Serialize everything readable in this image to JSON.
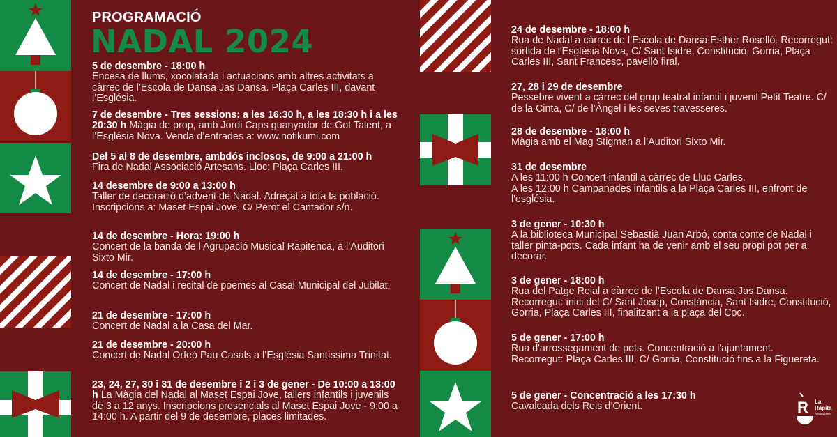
{
  "header": {
    "kicker": "PROGRAMACIÓ",
    "title": "NADAL 2024"
  },
  "colors": {
    "background": "#6b1619",
    "green": "#138a45",
    "red": "#8e1b14",
    "white": "#ffffff"
  },
  "left_events": [
    {
      "title": "5 de desembre - 18:00 h",
      "body": "Encesa de llums, xocolatada i actuacions amb altres activitats a càrrec de l’Escola de Dansa Jas Dansa. Plaça Carles III, davant l’Església."
    },
    {
      "title": "7 de desembre - Tres sessions: a les 16:30 h, a les 18:30 h i a les 20:30 h",
      "body": "Màgia de prop, amb Jordi Caps guanyador de Got Talent, a l’Església Nova. Venda d’entrades a: www.notikumi.com"
    },
    {
      "title": "Del 5 al 8 de desembre, ambdós inclosos, de 9:00 a 21:00 h",
      "body": "Fira de Nadal Associació Artesans. Lloc: Plaça Carles III."
    },
    {
      "title": "14 desembre de 9:00 a 13:00 h",
      "body": "Taller de decoració d’advent de Nadal. Adreçat a tota la població. Inscripcions a: Maset Espai Jove, C/ Perot el Cantador s/n."
    },
    {
      "title": "14 de desembre - Hora: 19:00 h",
      "body": "Concert de la banda de l’Agrupació Musical Rapitenca, a l’Auditori Sixto Mir."
    },
    {
      "title": "14 de desembre - 17:00 h",
      "body": "Concert de Nadal i recital de poemes al Casal Municipal del Jubilat."
    },
    {
      "title": "21 de desembre - 17:00 h",
      "body": "Concert de Nadal a la Casa del Mar."
    },
    {
      "title": "21 de desembre - 20:00 h",
      "body": "Concert de Nadal Orfeó Pau Casals a l’Església Santíssima Trinitat."
    },
    {
      "title": "23, 24, 27, 30 i 31 de desembre i 2 i 3 de gener - De 10:00 a 13:00 h",
      "body": "La Màgia del Nadal al Maset Espai Jove, tallers infantils i juvenils de 3 a 12 anys.  Inscripcions presencials al Maset Espai Jove - 9:00 a 14:00 h. A partir del 9 de desembre, places limitades."
    }
  ],
  "right_events": [
    {
      "title": "24 de desembre - 18:00 h",
      "body": "Rua de Nadal a càrrec de l’Escola de Dansa Esther Roselló. Recorregut: sortida de l'Església Nova, C/ Sant Isidre, Constitució, Gorria, Plaça Carles III, Sant Francesc, pavelló firal."
    },
    {
      "title": "27, 28 i 29 de desembre",
      "body": "Pessebre vivent a càrrec del grup teatral infantil i juvenil Petit Teatre. C/ de la Cinta, C/ de l’Àngel i les seves travesseres."
    },
    {
      "title": "28 de desembre - 18:00 h",
      "body": "Màgia amb el Mag Stigman a l’Auditori Sixto Mir."
    },
    {
      "title": "31 de desembre",
      "body": "A les 11:00 h Concert infantil a càrrec de Lluc Carles.",
      "body2": "A les 12:00 h Campanades infantils a la Plaça Carles III, enfront de l'església."
    },
    {
      "title": "3 de gener - 10:30 h",
      "body": "A la biblioteca Municipal Sebastià Juan Arbó, conta conte de Nadal i taller pinta-pots. Cada infant ha de venir amb el seu propi pot per a decorar."
    },
    {
      "title": "3 de gener - 18:00 h",
      "body": "Rua del Patge Reial a càrrec de l’Escola de Dansa Jas Dansa.",
      "body2": "Recorregut: inici del C/ Sant Josep, Constància, Sant Isidre, Constitució, Gorria, Plaça Carles III, finalitzant a la plaça del Coc."
    },
    {
      "title": "5 de gener - 17:00 h",
      "body": "Rua d'arrossegament de pots. Concentració a l'ajuntament.",
      "body2": "Recorregut: Plaça Carles III, C/ Gorria, Constitució fins a la Figuereta."
    },
    {
      "title": "5 de gener - Concentració a les 17:30 h",
      "body": "Cavalcada dels Reis d’Orient."
    }
  ],
  "logo": {
    "name": "La Ràpita",
    "sub": "Ajuntament",
    "letter": "R"
  }
}
